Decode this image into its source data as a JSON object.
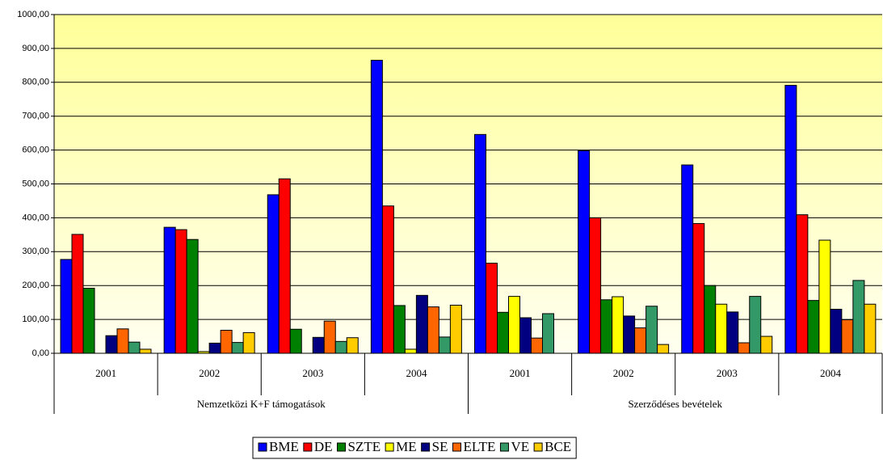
{
  "chart_data": {
    "type": "bar",
    "categories": [
      "2001",
      "2002",
      "2003",
      "2004",
      "2001",
      "2002",
      "2003",
      "2004"
    ],
    "category_groups": [
      "Nemzetközi K+F támogatások",
      "Szerződéses bevételek"
    ],
    "series": [
      {
        "name": "BME",
        "color": "#0000ff",
        "values": [
          277,
          372,
          468,
          865,
          646,
          598,
          556,
          791
        ]
      },
      {
        "name": "DE",
        "color": "#ff0000",
        "values": [
          351,
          365,
          515,
          435,
          266,
          400,
          383,
          409
        ]
      },
      {
        "name": "SZTE",
        "color": "#008000",
        "values": [
          192,
          336,
          71,
          141,
          121,
          158,
          200,
          156
        ]
      },
      {
        "name": "ME",
        "color": "#ffff00",
        "values": [
          null,
          5,
          null,
          12,
          168,
          167,
          145,
          334
        ]
      },
      {
        "name": "SE",
        "color": "#000080",
        "values": [
          52,
          30,
          47,
          171,
          105,
          110,
          122,
          130
        ]
      },
      {
        "name": "ELTE",
        "color": "#ff6600",
        "values": [
          72,
          68,
          95,
          137,
          45,
          75,
          31,
          99
        ]
      },
      {
        "name": "VE",
        "color": "#339966",
        "values": [
          33,
          32,
          35,
          48,
          117,
          139,
          168,
          215
        ]
      },
      {
        "name": "BCE",
        "color": "#ffcc00",
        "values": [
          12,
          61,
          46,
          142,
          null,
          26,
          50,
          145
        ]
      }
    ],
    "ylim": [
      0,
      1000
    ],
    "yticks": [
      {
        "value": 0,
        "label": "0,00"
      },
      {
        "value": 100,
        "label": "100,00"
      },
      {
        "value": 200,
        "label": "200,00"
      },
      {
        "value": 300,
        "label": "300,00"
      },
      {
        "value": 400,
        "label": "400,00"
      },
      {
        "value": 500,
        "label": "500,00"
      },
      {
        "value": 600,
        "label": "600,00"
      },
      {
        "value": 700,
        "label": "700,00"
      },
      {
        "value": 800,
        "label": "800,00"
      },
      {
        "value": 900,
        "label": "900,00"
      },
      {
        "value": 1000,
        "label": "1000,00"
      }
    ],
    "grid": true,
    "legend": "bottom"
  }
}
